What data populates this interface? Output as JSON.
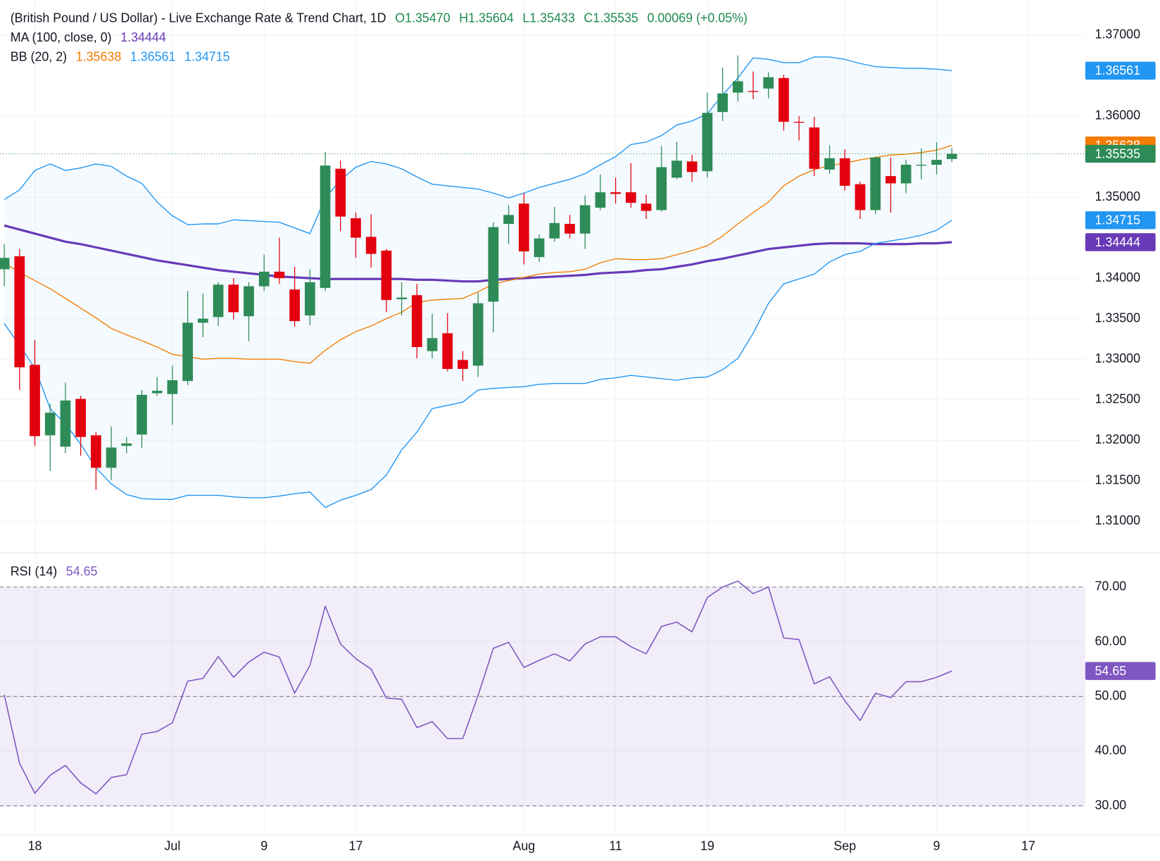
{
  "chart_data": [
    {
      "type": "candlestick",
      "title": "(British Pound / US Dollar) - Live Exchange Rate & Trend Chart, 1D",
      "ohlc_labels": [
        "O1.35470",
        "H1.35604",
        "L1.35433",
        "C1.35535"
      ],
      "change_label": "0.00069 (+0.05%)",
      "header_color": "#1e8a4f",
      "up_color": "#2e8b57",
      "down_color": "#e3000f",
      "open": [
        1.3411,
        1.3427,
        1.3293,
        1.3206,
        1.3192,
        1.3251,
        1.3206,
        1.3166,
        1.3193,
        1.3207,
        1.3258,
        1.3257,
        1.3273,
        1.3345,
        1.3352,
        1.3392,
        1.3353,
        1.339,
        1.3408,
        1.3386,
        1.3354,
        1.3388,
        1.3535,
        1.3474,
        1.3451,
        1.3434,
        1.3374,
        1.3379,
        1.331,
        1.3332,
        1.3299,
        1.3292,
        1.3371,
        1.3467,
        1.3492,
        1.3426,
        1.3449,
        1.3467,
        1.3455,
        1.3487,
        1.3506,
        1.3506,
        1.3492,
        1.3484,
        1.3524,
        1.3544,
        1.3532,
        1.3605,
        1.3629,
        1.3631,
        1.3634,
        1.3647,
        1.3593,
        1.3586,
        1.3534,
        1.3548,
        1.3516,
        1.3484,
        1.3526,
        1.3517,
        1.3539,
        1.354,
        1.3547
      ],
      "high": [
        1.3442,
        1.3436,
        1.3324,
        1.3245,
        1.3271,
        1.3255,
        1.321,
        1.3217,
        1.3204,
        1.3262,
        1.3278,
        1.3292,
        1.3384,
        1.3381,
        1.3395,
        1.34,
        1.3395,
        1.3429,
        1.345,
        1.3414,
        1.3411,
        1.3556,
        1.3545,
        1.3481,
        1.3479,
        1.3436,
        1.3395,
        1.3393,
        1.3356,
        1.3357,
        1.331,
        1.3382,
        1.3469,
        1.349,
        1.3505,
        1.3454,
        1.3488,
        1.3478,
        1.3502,
        1.3528,
        1.3524,
        1.3542,
        1.3503,
        1.3563,
        1.3568,
        1.3552,
        1.3629,
        1.366,
        1.3675,
        1.3655,
        1.3654,
        1.3651,
        1.36,
        1.3599,
        1.3564,
        1.3559,
        1.3519,
        1.355,
        1.3549,
        1.3546,
        1.356,
        1.3568,
        1.35604
      ],
      "low": [
        1.339,
        1.3262,
        1.3193,
        1.3162,
        1.3184,
        1.3181,
        1.3139,
        1.3151,
        1.3184,
        1.319,
        1.3255,
        1.3219,
        1.3268,
        1.3327,
        1.3341,
        1.3349,
        1.3322,
        1.3384,
        1.3393,
        1.334,
        1.3342,
        1.3384,
        1.3458,
        1.3425,
        1.3413,
        1.3358,
        1.3354,
        1.3301,
        1.3301,
        1.3285,
        1.3273,
        1.3278,
        1.3333,
        1.3442,
        1.3417,
        1.342,
        1.3445,
        1.3449,
        1.3436,
        1.3484,
        1.3492,
        1.3487,
        1.3473,
        1.3482,
        1.3522,
        1.3519,
        1.3524,
        1.3594,
        1.3618,
        1.3621,
        1.3622,
        1.3582,
        1.357,
        1.3526,
        1.3529,
        1.3508,
        1.3473,
        1.3479,
        1.3481,
        1.3505,
        1.3522,
        1.3528,
        1.35433
      ],
      "close": [
        1.3425,
        1.329,
        1.3205,
        1.3234,
        1.3249,
        1.3204,
        1.3166,
        1.3191,
        1.3196,
        1.3256,
        1.3261,
        1.3274,
        1.3345,
        1.335,
        1.3392,
        1.3358,
        1.339,
        1.3408,
        1.34,
        1.3347,
        1.3395,
        1.3539,
        1.3476,
        1.345,
        1.343,
        1.3373,
        1.3376,
        1.3315,
        1.3326,
        1.3288,
        1.3288,
        1.3369,
        1.3463,
        1.3478,
        1.3433,
        1.3449,
        1.3468,
        1.3455,
        1.349,
        1.3506,
        1.3504,
        1.3493,
        1.3483,
        1.3537,
        1.3545,
        1.3531,
        1.3604,
        1.3628,
        1.3643,
        1.363,
        1.3648,
        1.3593,
        1.3592,
        1.3535,
        1.3548,
        1.3514,
        1.3484,
        1.3549,
        1.3517,
        1.354,
        1.354,
        1.3546,
        1.35535
      ],
      "indicators": [
        {
          "name": "MA (100, close, 0)",
          "lines": [
            {
              "color": "#673ab7",
              "values": [
                1.3465,
                1.346,
                1.3455,
                1.345,
                1.3445,
                1.3442,
                1.3438,
                1.3434,
                1.343,
                1.3426,
                1.3422,
                1.3419,
                1.3416,
                1.3413,
                1.341,
                1.3408,
                1.3406,
                1.3404,
                1.3402,
                1.3401,
                1.34,
                1.3399,
                1.3399,
                1.3399,
                1.3399,
                1.3399,
                1.3399,
                1.3398,
                1.3398,
                1.3397,
                1.3396,
                1.3396,
                1.3398,
                1.3399,
                1.34,
                1.3401,
                1.3402,
                1.3403,
                1.3404,
                1.3406,
                1.3407,
                1.3408,
                1.341,
                1.3411,
                1.3414,
                1.3417,
                1.3421,
                1.3424,
                1.3428,
                1.3432,
                1.3436,
                1.3438,
                1.344,
                1.3442,
                1.3443,
                1.3443,
                1.3443,
                1.3442,
                1.3442,
                1.3442,
                1.3443,
                1.3443,
                1.34444
              ]
            }
          ]
        },
        {
          "name": "BB (20, 2)",
          "lines": [
            {
              "color": "#f57c00",
              "values": [
                1.3419,
                1.3407,
                1.3397,
                1.3387,
                1.3375,
                1.3363,
                1.3351,
                1.3338,
                1.333,
                1.3323,
                1.3315,
                1.3306,
                1.3303,
                1.33,
                1.3301,
                1.3301,
                1.33,
                1.33,
                1.33,
                1.3297,
                1.3295,
                1.3311,
                1.3324,
                1.3334,
                1.3341,
                1.335,
                1.3358,
                1.337,
                1.3373,
                1.3374,
                1.3375,
                1.3383,
                1.3393,
                1.3397,
                1.3401,
                1.3405,
                1.3407,
                1.3408,
                1.3411,
                1.3419,
                1.3424,
                1.3423,
                1.3423,
                1.3424,
                1.3429,
                1.3434,
                1.344,
                1.3452,
                1.3467,
                1.3481,
                1.3494,
                1.3514,
                1.3526,
                1.3534,
                1.3539,
                1.3542,
                1.3546,
                1.3549,
                1.3552,
                1.3553,
                1.3555,
                1.3558,
                1.35638
              ]
            },
            {
              "color": "#2196f3",
              "values": [
                1.3497,
                1.3509,
                1.3533,
                1.3541,
                1.3533,
                1.3536,
                1.3541,
                1.3538,
                1.3526,
                1.3517,
                1.3494,
                1.3477,
                1.3466,
                1.3467,
                1.3467,
                1.3472,
                1.3471,
                1.347,
                1.3469,
                1.3462,
                1.3455,
                1.3499,
                1.3521,
                1.3537,
                1.3544,
                1.3541,
                1.3535,
                1.3525,
                1.3516,
                1.3514,
                1.3512,
                1.351,
                1.3505,
                1.3499,
                1.3505,
                1.3512,
                1.3517,
                1.3522,
                1.3529,
                1.354,
                1.355,
                1.3565,
                1.3568,
                1.3576,
                1.3589,
                1.3594,
                1.3603,
                1.3626,
                1.3647,
                1.3672,
                1.367,
                1.3666,
                1.3666,
                1.3673,
                1.3673,
                1.367,
                1.3665,
                1.3661,
                1.366,
                1.3659,
                1.3659,
                1.3658,
                1.36561
              ]
            },
            {
              "color": "#2196f3",
              "values": [
                1.3344,
                1.3317,
                1.3289,
                1.3239,
                1.322,
                1.3195,
                1.3166,
                1.3146,
                1.3133,
                1.3128,
                1.3127,
                1.3127,
                1.3132,
                1.3132,
                1.3132,
                1.313,
                1.3129,
                1.3129,
                1.3131,
                1.3134,
                1.3136,
                1.3117,
                1.3126,
                1.3132,
                1.3139,
                1.3157,
                1.3188,
                1.321,
                1.3239,
                1.3243,
                1.3247,
                1.3262,
                1.3264,
                1.3265,
                1.3266,
                1.3269,
                1.327,
                1.327,
                1.327,
                1.3275,
                1.3277,
                1.328,
                1.3278,
                1.3276,
                1.3274,
                1.3277,
                1.3278,
                1.3287,
                1.3301,
                1.3332,
                1.3369,
                1.3393,
                1.3399,
                1.3405,
                1.342,
                1.3429,
                1.3433,
                1.3443,
                1.3446,
                1.3449,
                1.3453,
                1.3459,
                1.34715
              ]
            }
          ]
        }
      ],
      "xlim": [
        -0.28,
        70.73
      ],
      "ylim": [
        1.30613,
        1.37433
      ],
      "yticks": [
        {
          "value": 1.37,
          "label": "1.37000"
        },
        {
          "value": 1.36,
          "label": "1.36000"
        },
        {
          "value": 1.35,
          "label": "1.35000"
        },
        {
          "value": 1.34,
          "label": "1.34000"
        },
        {
          "value": 1.335,
          "label": "1.33500"
        },
        {
          "value": 1.33,
          "label": "1.33000"
        },
        {
          "value": 1.325,
          "label": "1.32500"
        },
        {
          "value": 1.32,
          "label": "1.32000"
        },
        {
          "value": 1.315,
          "label": "1.31500"
        },
        {
          "value": 1.31,
          "label": "1.31000"
        }
      ],
      "grid": true
    },
    {
      "type": "line",
      "series": [
        {
          "name": "RSI (14)",
          "color": "#7e57c2",
          "values": [
            50.3,
            37.8,
            32.3,
            35.6,
            37.4,
            34.2,
            32.2,
            35.2,
            35.7,
            43.1,
            43.6,
            45.2,
            52.8,
            53.3,
            57.3,
            53.5,
            56.3,
            58.1,
            57.2,
            50.6,
            55.7,
            66.5,
            59.6,
            56.9,
            55.0,
            49.7,
            49.5,
            44.3,
            45.4,
            42.3,
            42.3,
            50.2,
            58.8,
            59.9,
            55.3,
            56.6,
            57.8,
            56.5,
            59.6,
            60.9,
            60.9,
            59.1,
            57.8,
            62.8,
            63.6,
            61.8,
            68.1,
            70.0,
            71.1,
            68.8,
            70.0,
            60.7,
            60.4,
            52.3,
            53.6,
            49.2,
            45.6,
            50.6,
            49.8,
            52.7,
            52.7,
            53.5,
            54.65
          ]
        }
      ],
      "levels": [
        30,
        50,
        70
      ],
      "xlim": [
        -0.28,
        70.73
      ],
      "xticks": [
        {
          "value": 2,
          "label": "18"
        },
        {
          "value": 11,
          "label": "Jul"
        },
        {
          "value": 17,
          "label": "9"
        },
        {
          "value": 23,
          "label": "17"
        },
        {
          "value": 34,
          "label": "Aug"
        },
        {
          "value": 40,
          "label": "11"
        },
        {
          "value": 46,
          "label": "19"
        },
        {
          "value": 55,
          "label": "Sep"
        },
        {
          "value": 61,
          "label": "9"
        },
        {
          "value": 67,
          "label": "17"
        }
      ],
      "ylim": [
        24.7,
        76.3
      ],
      "yticks": [
        {
          "value": 70,
          "label": "70.00"
        },
        {
          "value": 60,
          "label": "60.00"
        },
        {
          "value": 50,
          "label": "50.00"
        },
        {
          "value": 40,
          "label": "40.00"
        },
        {
          "value": 30,
          "label": "30.00"
        }
      ],
      "grid": true
    }
  ]
}
